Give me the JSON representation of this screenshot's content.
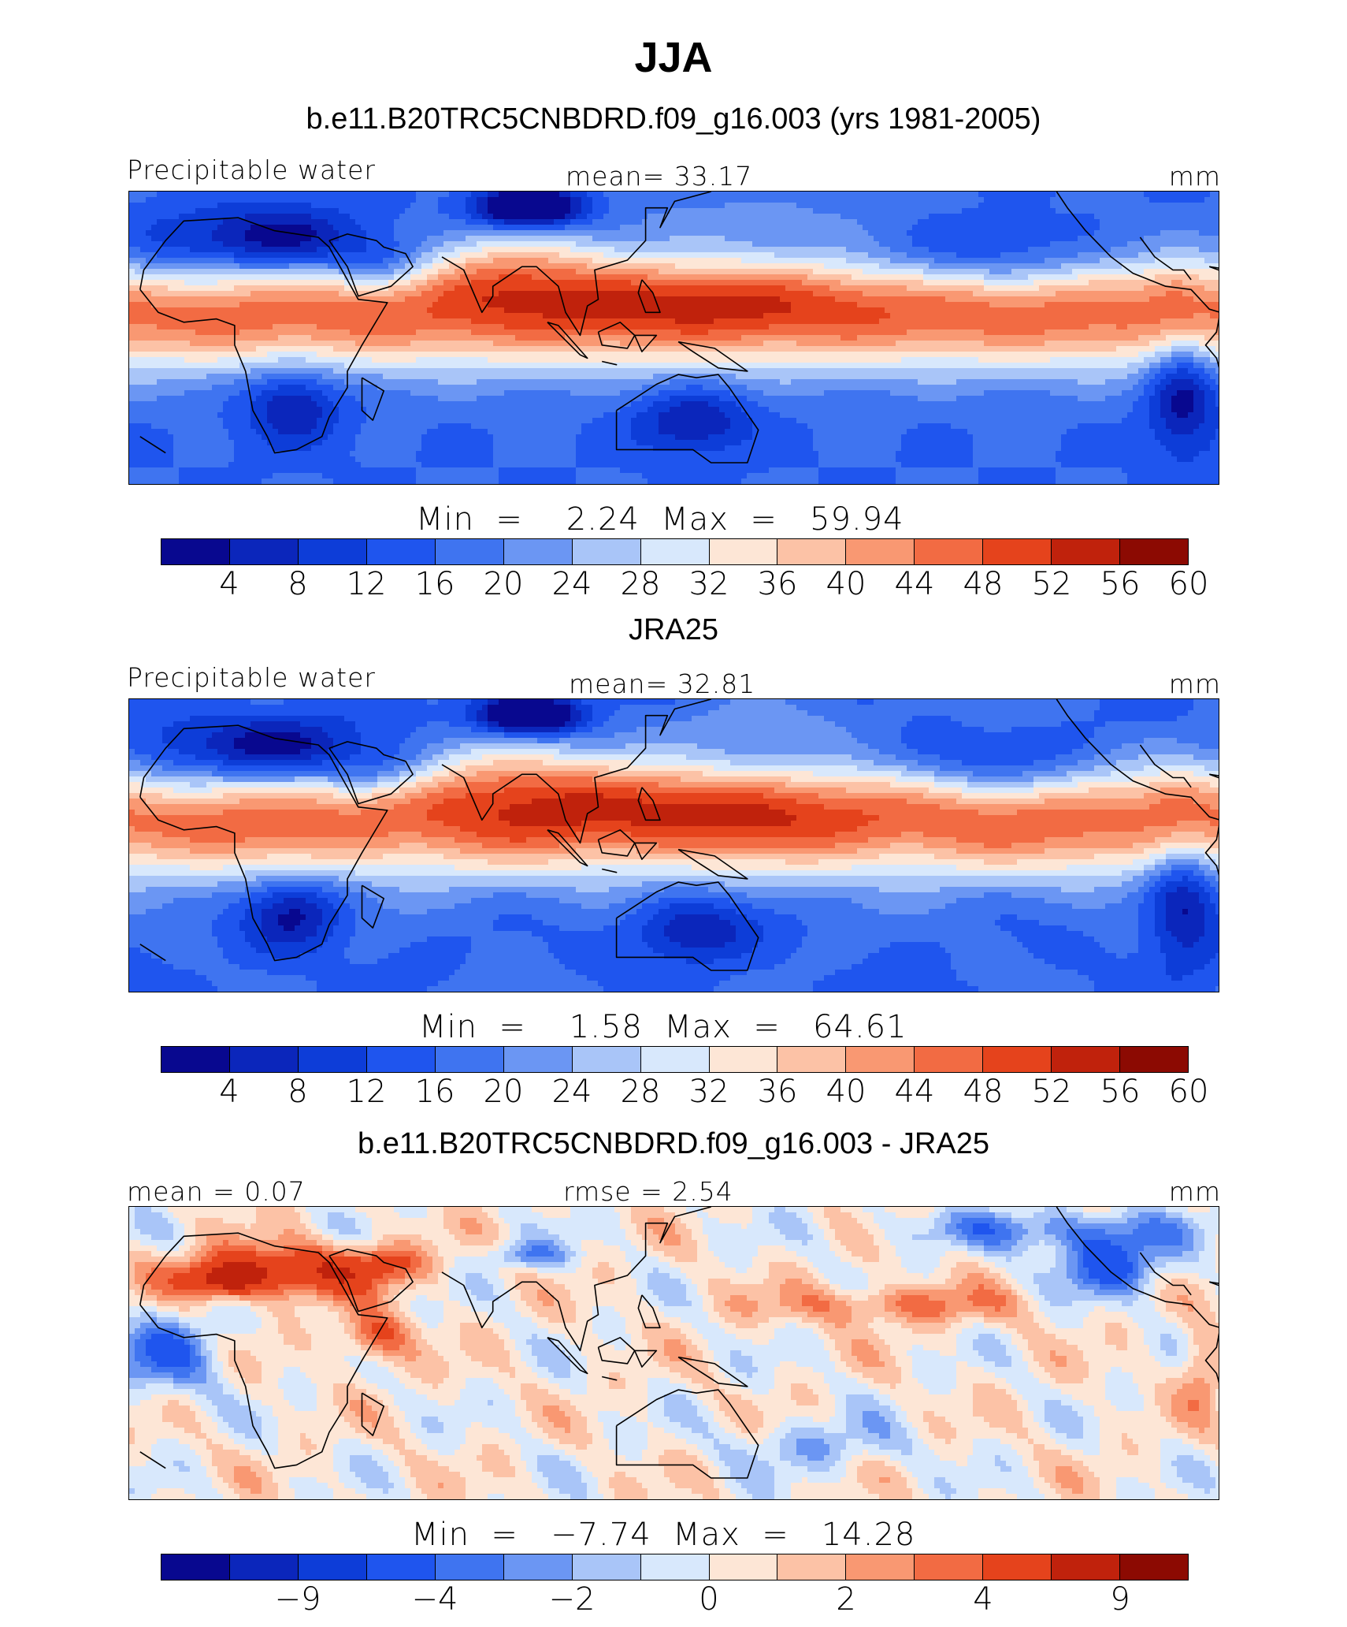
{
  "figure": {
    "title": "JJA"
  },
  "panels": [
    {
      "title": "b.e11.B20TRC5CNBDRD.f09_g16.003 (yrs 1981-2005)",
      "left_label": "Precipitable water",
      "center_label": "mean=   33.17",
      "right_label": "mm",
      "stats": "Min  =    2.24  Max  =   59.94",
      "colorbar_ticks": [
        "4",
        "8",
        "12",
        "16",
        "20",
        "24",
        "28",
        "32",
        "36",
        "40",
        "44",
        "48",
        "52",
        "56",
        "60"
      ],
      "field_type": "abs"
    },
    {
      "title": "JRA25",
      "left_label": "Precipitable water",
      "center_label": "mean=   32.81",
      "right_label": "mm",
      "stats": "Min  =    1.58  Max  =   64.61",
      "colorbar_ticks": [
        "4",
        "8",
        "12",
        "16",
        "20",
        "24",
        "28",
        "32",
        "36",
        "40",
        "44",
        "48",
        "52",
        "56",
        "60"
      ],
      "field_type": "abs"
    },
    {
      "title": "b.e11.B20TRC5CNBDRD.f09_g16.003 - JRA25",
      "left_label": "mean  =    0.07",
      "center_label": "rmse  =    2.54",
      "right_label": "mm",
      "stats": "Min  =   −7.74  Max  =   14.28",
      "colorbar_ticks": [
        "−9",
        "−4",
        "−2",
        "0",
        "2",
        "4",
        "9"
      ],
      "field_type": "diff"
    }
  ],
  "colormap": [
    "#08088f",
    "#0b26bb",
    "#0d3dd8",
    "#1f55ee",
    "#3f74f0",
    "#6b96f3",
    "#a9c5f8",
    "#d8e8fc",
    "#fde6d6",
    "#fcc2a6",
    "#f99872",
    "#f26b43",
    "#e5431c",
    "#c0220c",
    "#8c0a02"
  ]
}
